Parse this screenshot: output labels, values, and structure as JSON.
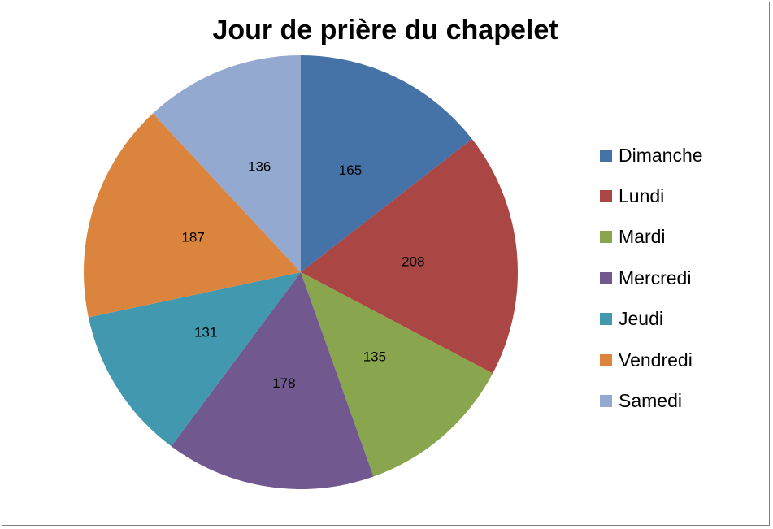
{
  "chart_data": {
    "type": "pie",
    "title": "Jour de prière du chapelet",
    "categories": [
      "Dimanche",
      "Lundi",
      "Mardi",
      "Mercredi",
      "Jeudi",
      "Vendredi",
      "Samedi"
    ],
    "values": [
      165,
      208,
      135,
      178,
      131,
      187,
      136
    ],
    "colors": [
      "#4572A7",
      "#AA4643",
      "#89A54E",
      "#71588F",
      "#4198AF",
      "#DB843D",
      "#93A9CF"
    ],
    "data_labels": [
      "165",
      "208",
      "135",
      "178",
      "131",
      "187",
      "136"
    ],
    "start_angle_deg": 0,
    "direction": "clockwise",
    "legend_position": "right"
  }
}
